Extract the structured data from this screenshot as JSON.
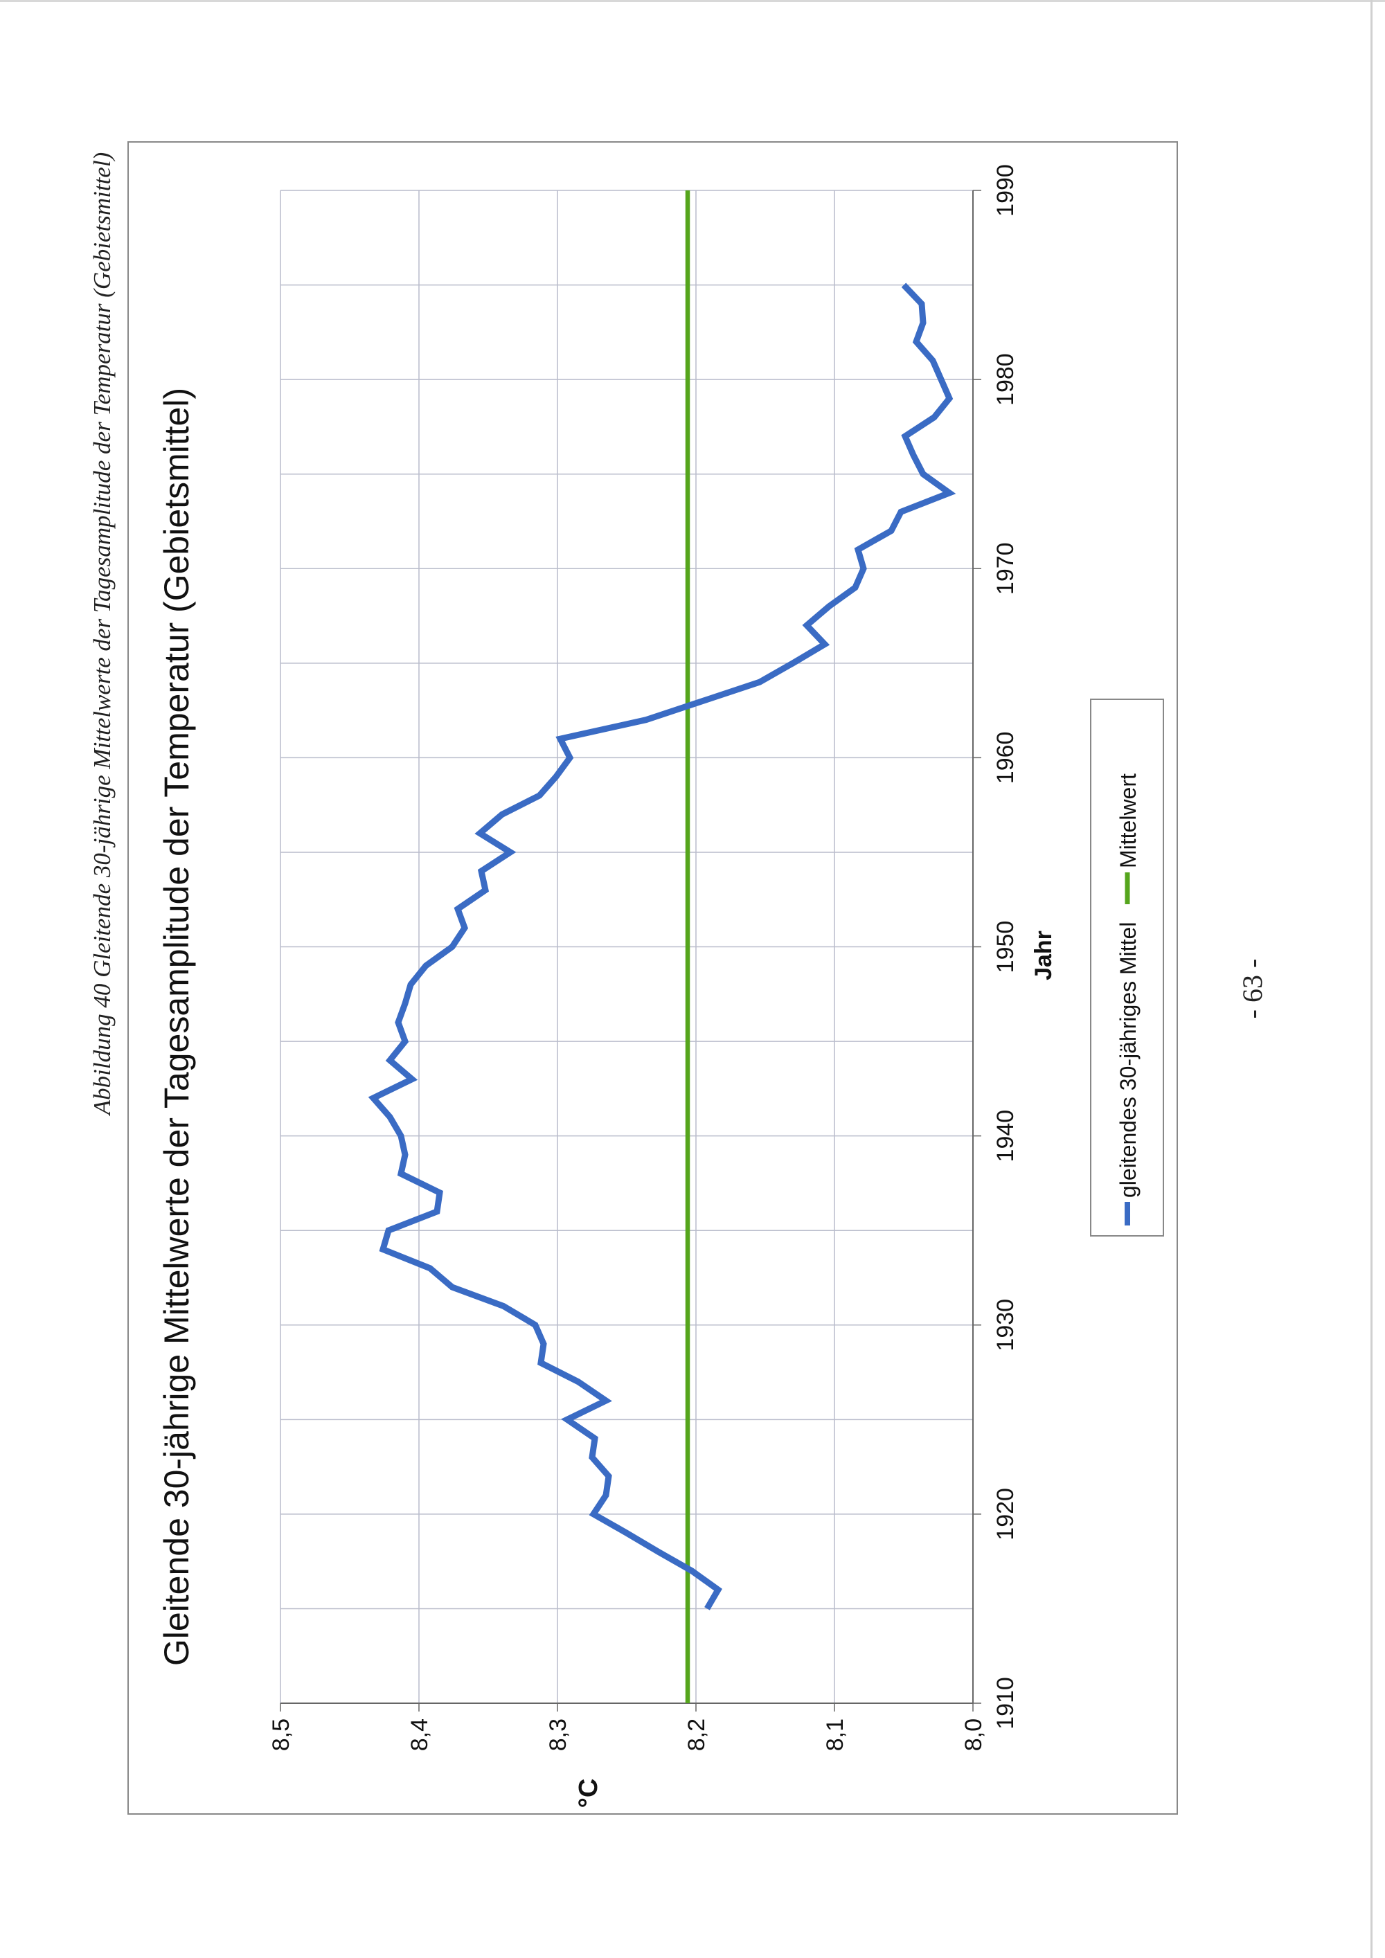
{
  "caption": "Abbildung 40 Gleitende 30-jährige Mittelwerte der Tagesamplitude der Temperatur (Gebietsmittel)",
  "page_number": "- 63 -",
  "colors": {
    "series": "#3a6bc4",
    "mean": "#55a51c",
    "grid": "#b9bccb",
    "frame": "#888888"
  },
  "chart_data": {
    "type": "line",
    "title": "Gleitende 30-jährige Mittelwerte der Tagesamplitude der Temperatur (Gebietsmittel)",
    "xlabel": "Jahr",
    "ylabel": "°C",
    "xlim": [
      1910,
      1990
    ],
    "ylim": [
      8.0,
      8.5
    ],
    "x_ticks": [
      "1910",
      "1920",
      "1930",
      "1940",
      "1950",
      "1960",
      "1970",
      "1980",
      "1990"
    ],
    "x_grid_step": 5,
    "y_ticks": [
      "8,0",
      "8,1",
      "8,2",
      "8,3",
      "8,4",
      "8,5"
    ],
    "grid": true,
    "legend_position": "bottom",
    "series": [
      {
        "name": "gleitendes 30-jähriges Mittel",
        "x": [
          1915,
          1916,
          1917,
          1918,
          1919,
          1920,
          1921,
          1922,
          1923,
          1924,
          1925,
          1926,
          1927,
          1928,
          1929,
          1930,
          1931,
          1932,
          1933,
          1934,
          1935,
          1936,
          1937,
          1938,
          1939,
          1940,
          1941,
          1942,
          1943,
          1944,
          1945,
          1946,
          1947,
          1948,
          1949,
          1950,
          1951,
          1952,
          1953,
          1954,
          1955,
          1956,
          1957,
          1958,
          1959,
          1960,
          1961,
          1962,
          1963,
          1964,
          1965,
          1966,
          1967,
          1968,
          1969,
          1970,
          1971,
          1972,
          1973,
          1974,
          1975,
          1976,
          1977,
          1978,
          1979,
          1980,
          1981,
          1982,
          1983,
          1984,
          1985
        ],
        "y": [
          8.192,
          8.184,
          8.203,
          8.227,
          8.25,
          8.274,
          8.265,
          8.263,
          8.275,
          8.273,
          8.293,
          8.265,
          8.285,
          8.312,
          8.31,
          8.316,
          8.339,
          8.376,
          8.392,
          8.426,
          8.422,
          8.387,
          8.385,
          8.413,
          8.41,
          8.413,
          8.421,
          8.433,
          8.405,
          8.421,
          8.41,
          8.415,
          8.41,
          8.406,
          8.395,
          8.376,
          8.367,
          8.372,
          8.352,
          8.355,
          8.334,
          8.356,
          8.34,
          8.313,
          8.301,
          8.291,
          8.298,
          8.236,
          8.195,
          8.154,
          8.13,
          8.107,
          8.12,
          8.104,
          8.085,
          8.079,
          8.083,
          8.059,
          8.052,
          8.017,
          8.036,
          8.043,
          8.049,
          8.028,
          8.017,
          8.023,
          8.029,
          8.041,
          8.036,
          8.037,
          8.05
        ]
      },
      {
        "name": "Mittelwert",
        "x": [
          1910,
          1990
        ],
        "y": [
          8.206,
          8.206
        ]
      }
    ]
  }
}
